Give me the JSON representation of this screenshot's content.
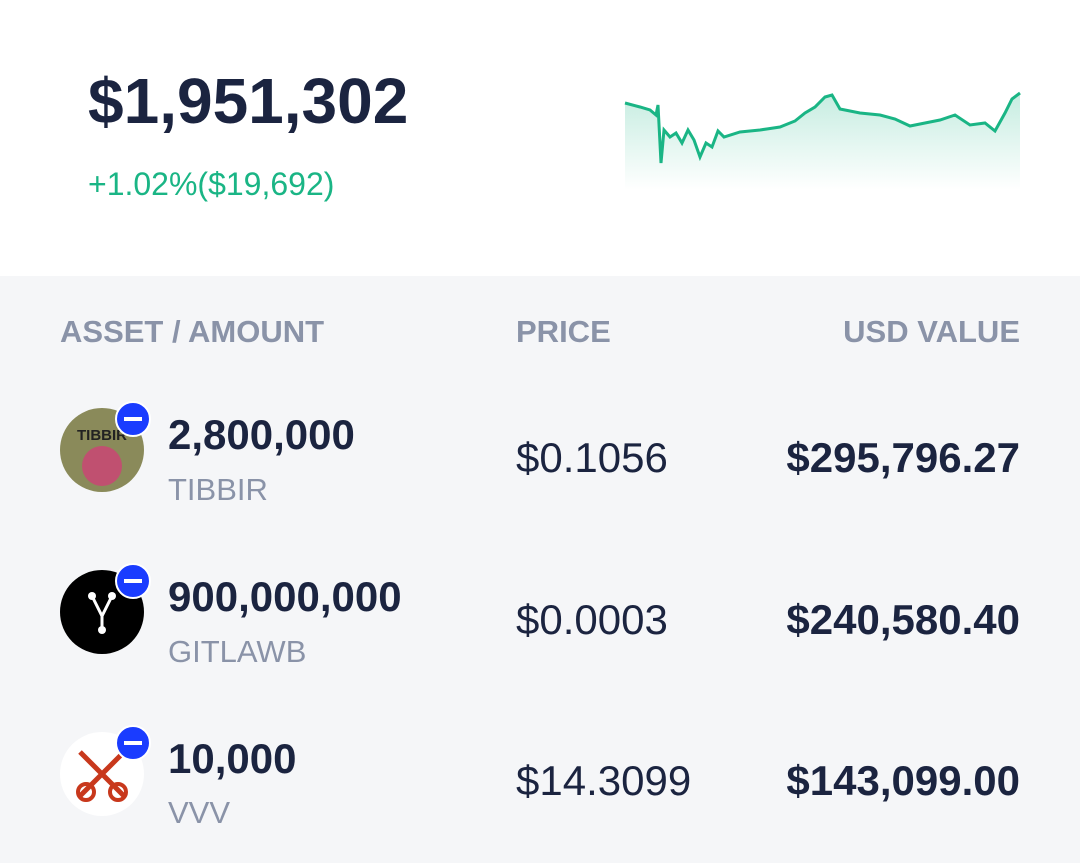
{
  "summary": {
    "total": "$1,951,302",
    "change_percent": "+1.02%",
    "change_amount": "($19,692)"
  },
  "table": {
    "headers": [
      "ASSET / AMOUNT",
      "PRICE",
      "USD VALUE"
    ],
    "rows": [
      {
        "amount": "2,800,000",
        "symbol": "TIBBIR",
        "price": "$0.1056",
        "value": "$295,796.27",
        "icon_text": "TIBBIR"
      },
      {
        "amount": "900,000,000",
        "symbol": "GITLAWB",
        "price": "$0.0003",
        "value": "$240,580.40"
      },
      {
        "amount": "10,000",
        "symbol": "VVV",
        "price": "$14.3099",
        "value": "$143,099.00"
      }
    ]
  }
}
